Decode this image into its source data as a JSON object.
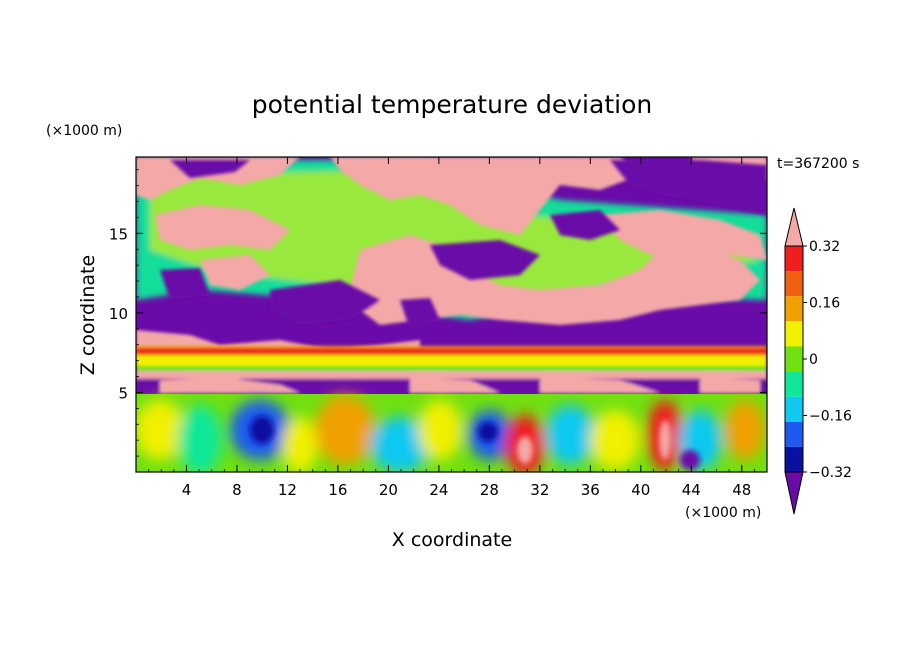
{
  "chart_data": {
    "type": "heatmap",
    "title": "potential temperature deviation",
    "xlabel": "X coordinate",
    "ylabel": "Z coordinate",
    "x_unit": "(×1000 m)",
    "y_unit": "(×1000 m)",
    "time_label": "t=367200 s",
    "xlim": [
      0,
      50
    ],
    "ylim": [
      0,
      19.8
    ],
    "x_ticks": [
      4,
      8,
      12,
      16,
      20,
      24,
      28,
      32,
      36,
      40,
      44,
      48
    ],
    "x_tick_labels": [
      "4",
      "8",
      "12",
      "16",
      "20",
      "24",
      "28",
      "32",
      "36",
      "40",
      "44",
      "48"
    ],
    "y_ticks": [
      5,
      10,
      15
    ],
    "y_tick_labels": [
      "5",
      "10",
      "15"
    ],
    "grid": false,
    "colorbar": {
      "levels": [
        -0.4,
        -0.32,
        -0.24,
        -0.16,
        -0.08,
        0,
        0.08,
        0.16,
        0.24,
        0.32,
        0.4
      ],
      "tick_values": [
        -0.32,
        -0.16,
        0,
        0.16,
        0.32
      ],
      "tick_labels": [
        "−0.32",
        "−0.16",
        "0",
        "0.16",
        "0.32"
      ],
      "colors": [
        "#6a0aa8",
        "#0a10a0",
        "#1e5af0",
        "#10c8f0",
        "#10e898",
        "#70e010",
        "#f0f000",
        "#f0a000",
        "#f06010",
        "#f01e1e",
        "#f4a8a8"
      ],
      "extend": "both",
      "placement": "right"
    },
    "interface_z": 5,
    "band_z": [
      6.0,
      8.0
    ]
  }
}
